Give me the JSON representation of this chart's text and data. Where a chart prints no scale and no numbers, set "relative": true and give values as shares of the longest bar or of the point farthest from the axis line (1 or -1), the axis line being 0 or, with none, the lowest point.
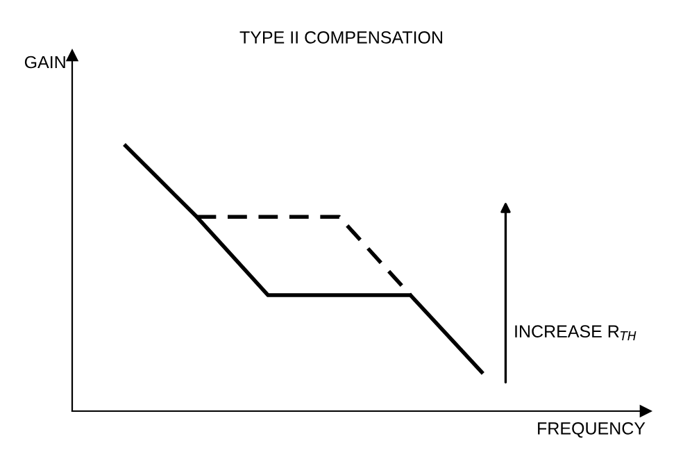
{
  "chart_data": {
    "type": "line",
    "title": "TYPE II COMPENSATION",
    "xlabel": "FREQUENCY",
    "ylabel": "GAIN",
    "relative": true,
    "categories": [
      null,
      null,
      null,
      null,
      null,
      null
    ],
    "series": [
      {
        "color": "#000000",
        "line_style": "solid",
        "values": [
          1,
          0.732,
          0.437,
          0.437,
          0.437,
          0.147
        ]
      },
      {
        "color": "#000000",
        "line_style": "dashed",
        "values": [
          null,
          0.732,
          0.732,
          0.732,
          0.437,
          null
        ]
      }
    ],
    "annotations": [
      "INCREASE R$_{TH}$"
    ],
    "marker": "none"
  }
}
